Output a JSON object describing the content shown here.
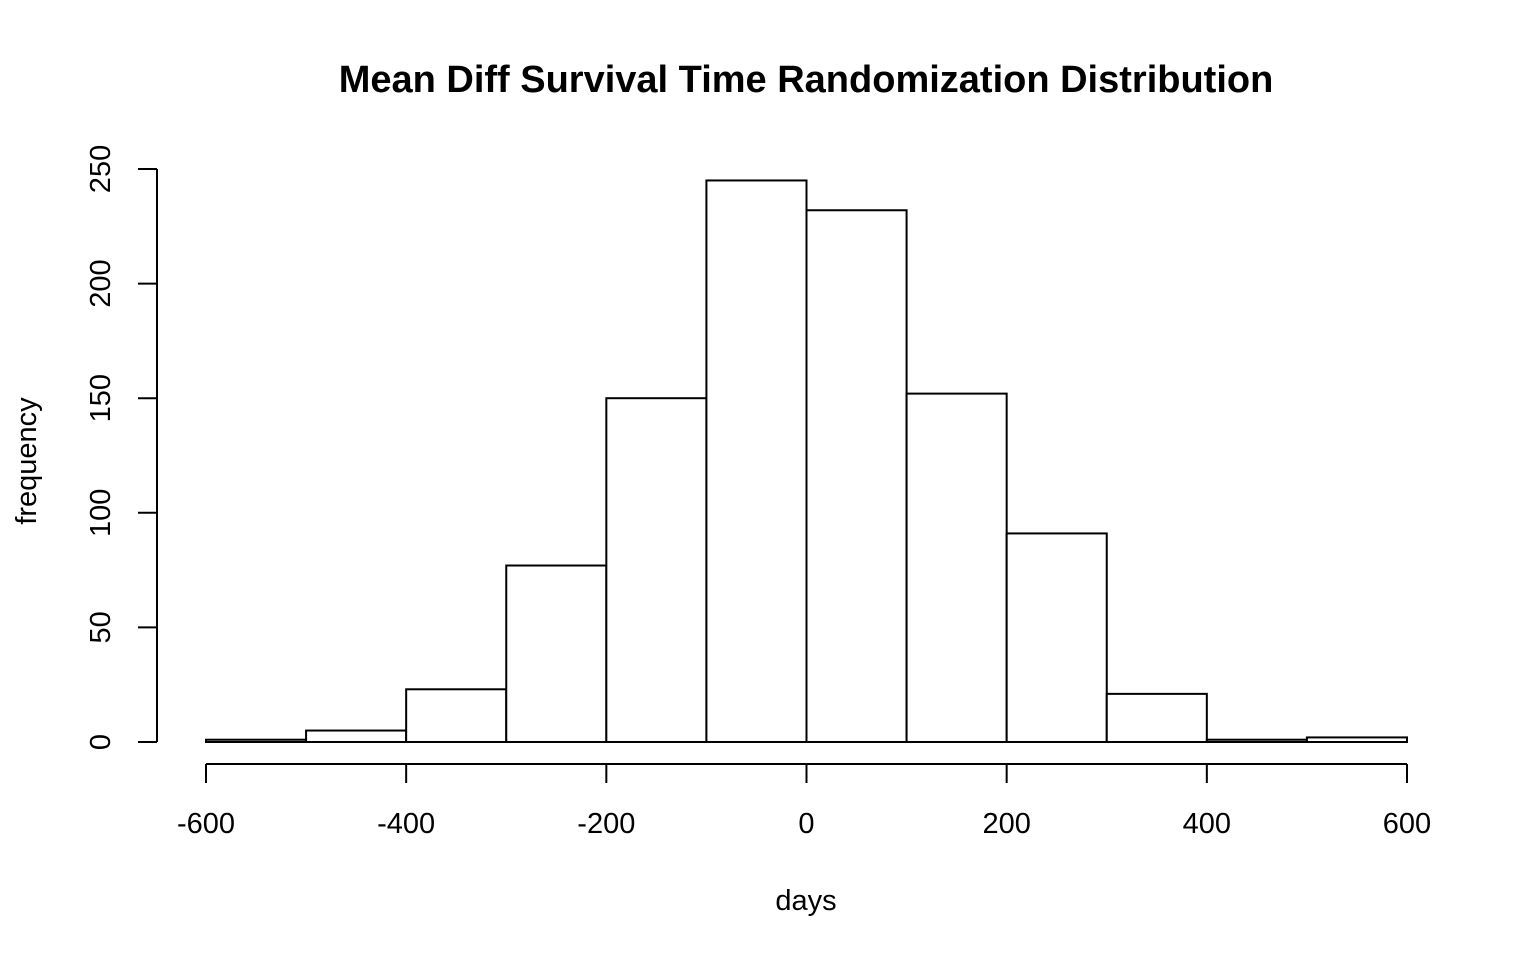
{
  "chart_data": {
    "type": "bar",
    "title": "Mean Diff Survival Time Randomization Distribution",
    "xlabel": "days",
    "ylabel": "frequency",
    "xlim": [
      -600,
      600
    ],
    "ylim": [
      0,
      250
    ],
    "bin_edges": [
      -600,
      -500,
      -400,
      -300,
      -200,
      -100,
      0,
      100,
      200,
      300,
      400,
      500,
      600
    ],
    "values": [
      1,
      5,
      23,
      77,
      150,
      245,
      232,
      152,
      91,
      21,
      1,
      2
    ],
    "x_ticks": [
      -600,
      -400,
      -200,
      0,
      200,
      400,
      600
    ],
    "y_ticks": [
      0,
      50,
      100,
      150,
      200,
      250
    ],
    "x_tick_labels": [
      "-600",
      "-400",
      "-200",
      "0",
      "200",
      "400",
      "600"
    ],
    "y_tick_labels": [
      "0",
      "50",
      "100",
      "150",
      "200",
      "250"
    ],
    "grid": false,
    "bar_fill": "#ffffff",
    "bar_stroke": "#000000"
  }
}
